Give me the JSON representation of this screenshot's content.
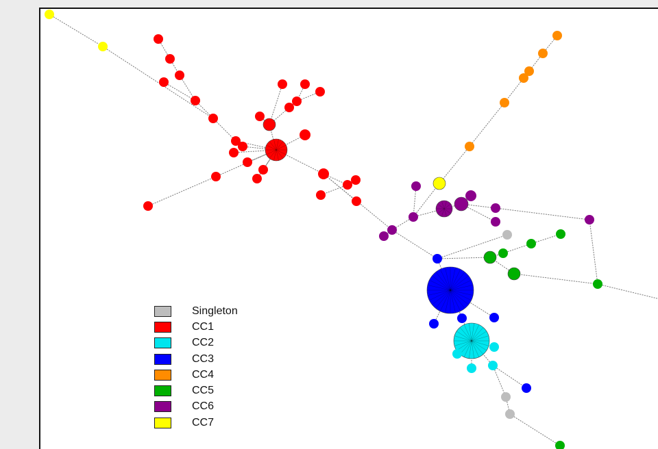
{
  "legend": [
    {
      "label": "Singleton",
      "color": "#bdbdbd"
    },
    {
      "label": "CC1",
      "color": "#ff0000"
    },
    {
      "label": "CC2",
      "color": "#00e5ee"
    },
    {
      "label": "CC3",
      "color": "#0000ff"
    },
    {
      "label": "CC4",
      "color": "#ff8c00"
    },
    {
      "label": "CC5",
      "color": "#00b000"
    },
    {
      "label": "CC6",
      "color": "#8b008b"
    },
    {
      "label": "CC7",
      "color": "#ffff00"
    }
  ]
}
